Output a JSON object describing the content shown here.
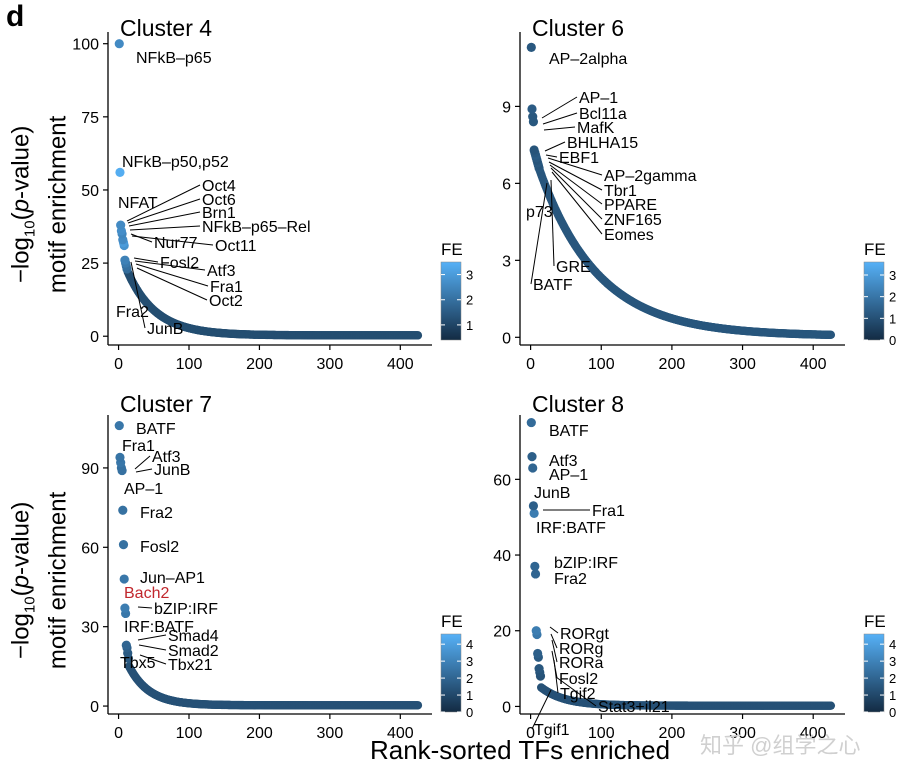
{
  "figure": {
    "panel_letter": "d",
    "ylabel_line1_pre": "−log",
    "ylabel_sub": "10",
    "ylabel_line1_mid": "(",
    "ylabel_line1_ital": "p",
    "ylabel_line1_post": "-value)",
    "ylabel_line2": "motif enrichment",
    "xlabel": "Rank-sorted TFs enriched",
    "watermark": "知乎 @组学之心"
  },
  "colors": {
    "dark": "#132b43",
    "light": "#56b1f7",
    "label_default": "#000000",
    "label_highlight": "#c1272d"
  },
  "chart_data": [
    {
      "type": "scatter",
      "title": "Cluster 4",
      "xticks": [
        0,
        100,
        200,
        300,
        400
      ],
      "yticks": [
        0,
        25,
        50,
        75,
        100
      ],
      "ylim": [
        -3,
        104
      ],
      "xlim": [
        -15,
        445
      ],
      "points": [
        {
          "x": 1,
          "y": 100,
          "fe": 2.6
        },
        {
          "x": 2,
          "y": 56,
          "fe": 3.4
        },
        {
          "x": 3,
          "y": 38,
          "fe": 2.6
        },
        {
          "x": 4,
          "y": 36,
          "fe": 2.7
        },
        {
          "x": 5,
          "y": 35,
          "fe": 2.5
        },
        {
          "x": 6,
          "y": 33,
          "fe": 2.6
        },
        {
          "x": 7,
          "y": 32,
          "fe": 3.0
        },
        {
          "x": 8,
          "y": 31,
          "fe": 2.8
        },
        {
          "x": 9,
          "y": 26,
          "fe": 2.4
        },
        {
          "x": 10,
          "y": 25,
          "fe": 2.2
        },
        {
          "x": 11,
          "y": 24,
          "fe": 2.0
        },
        {
          "x": 12,
          "y": 23,
          "fe": 1.9
        }
      ],
      "tail": {
        "x_start": 13,
        "x_end": 425,
        "y_start": 22,
        "y_end": 0.3,
        "decay": 0.025,
        "fe": 1.2
      },
      "fe_legend": {
        "title": "FE",
        "ticks": [
          1,
          2,
          3
        ],
        "min": 0.4,
        "max": 3.5
      },
      "annotations": [
        {
          "text": "NFkB–p65",
          "x": 1,
          "y": 100
        },
        {
          "text": "NFkB–p50,p52",
          "x": 2,
          "y": 56
        },
        {
          "text": "NFAT",
          "x": 3,
          "y": 38
        },
        {
          "text": "Oct4",
          "x": 4,
          "y": 36
        },
        {
          "text": "Oct6",
          "x": 5,
          "y": 35
        },
        {
          "text": "Brn1",
          "x": 6,
          "y": 33
        },
        {
          "text": "NFkB–p65–Rel",
          "x": 6,
          "y": 33
        },
        {
          "text": "Nur77",
          "x": 7,
          "y": 32
        },
        {
          "text": "Oct11",
          "x": 8,
          "y": 31
        },
        {
          "text": "Fosl2",
          "x": 9,
          "y": 26
        },
        {
          "text": "Atf3",
          "x": 10,
          "y": 25
        },
        {
          "text": "Fra1",
          "x": 10,
          "y": 24
        },
        {
          "text": "Oct2",
          "x": 11,
          "y": 23
        },
        {
          "text": "Fra2",
          "x": 11,
          "y": 23
        },
        {
          "text": "JunB",
          "x": 12,
          "y": 23
        }
      ]
    },
    {
      "type": "scatter",
      "title": "Cluster 6",
      "xticks": [
        0,
        100,
        200,
        300,
        400
      ],
      "yticks": [
        0,
        3,
        6,
        9
      ],
      "ylim": [
        -0.3,
        11.9
      ],
      "xlim": [
        -15,
        445
      ],
      "points": [
        {
          "x": 1,
          "y": 11.3,
          "fe": 1.2
        },
        {
          "x": 2,
          "y": 8.9,
          "fe": 1.3
        },
        {
          "x": 3,
          "y": 8.6,
          "fe": 1.2
        },
        {
          "x": 4,
          "y": 8.4,
          "fe": 1.2
        },
        {
          "x": 5,
          "y": 7.3,
          "fe": 1.1
        },
        {
          "x": 6,
          "y": 7.2,
          "fe": 1.2
        },
        {
          "x": 7,
          "y": 7.1,
          "fe": 1.3
        },
        {
          "x": 8,
          "y": 7.0,
          "fe": 1.2
        },
        {
          "x": 9,
          "y": 6.9,
          "fe": 1.1
        },
        {
          "x": 10,
          "y": 6.8,
          "fe": 1.2
        },
        {
          "x": 11,
          "y": 6.7,
          "fe": 1.1
        },
        {
          "x": 12,
          "y": 6.6,
          "fe": 1.2
        }
      ],
      "tail": {
        "x_start": 13,
        "x_end": 425,
        "y_start": 6.5,
        "y_end": 0.05,
        "decay": 0.012,
        "fe": 1.15
      },
      "fe_legend": {
        "title": "FE",
        "ticks": [
          0,
          1,
          2,
          3
        ],
        "min": 0,
        "max": 3.6
      },
      "annotations": [
        {
          "text": "AP–2alpha",
          "x": 1,
          "y": 11.3
        },
        {
          "text": "AP–1",
          "x": 2,
          "y": 8.9
        },
        {
          "text": "Bcl11a",
          "x": 3,
          "y": 8.6
        },
        {
          "text": "MafK",
          "x": 4,
          "y": 8.4
        },
        {
          "text": "BHLHA15",
          "x": 5,
          "y": 7.3
        },
        {
          "text": "EBF1",
          "x": 6,
          "y": 7.2
        },
        {
          "text": "AP–2gamma",
          "x": 7,
          "y": 7.1
        },
        {
          "text": "Tbr1",
          "x": 8,
          "y": 7.0
        },
        {
          "text": "PPARE",
          "x": 9,
          "y": 6.9
        },
        {
          "text": "p73",
          "x": 10,
          "y": 6.8
        },
        {
          "text": "ZNF165",
          "x": 10,
          "y": 6.8
        },
        {
          "text": "Eomes",
          "x": 11,
          "y": 6.7
        },
        {
          "text": "GRE",
          "x": 11,
          "y": 6.7
        },
        {
          "text": "BATF",
          "x": 12,
          "y": 6.6
        }
      ]
    },
    {
      "type": "scatter",
      "title": "Cluster 7",
      "xticks": [
        0,
        100,
        200,
        300,
        400
      ],
      "yticks": [
        0,
        30,
        60,
        90
      ],
      "ylim": [
        -3,
        110
      ],
      "xlim": [
        -15,
        445
      ],
      "points": [
        {
          "x": 1,
          "y": 106,
          "fe": 2.6
        },
        {
          "x": 2,
          "y": 94,
          "fe": 2.5
        },
        {
          "x": 3,
          "y": 92,
          "fe": 2.6
        },
        {
          "x": 4,
          "y": 90,
          "fe": 2.4
        },
        {
          "x": 5,
          "y": 89,
          "fe": 2.4
        },
        {
          "x": 6,
          "y": 74,
          "fe": 2.4
        },
        {
          "x": 7,
          "y": 61,
          "fe": 2.4
        },
        {
          "x": 8,
          "y": 48,
          "fe": 2.6
        },
        {
          "x": 9,
          "y": 37,
          "fe": 2.8
        },
        {
          "x": 10,
          "y": 35,
          "fe": 2.6
        },
        {
          "x": 11,
          "y": 23,
          "fe": 2.0
        },
        {
          "x": 12,
          "y": 22,
          "fe": 1.8
        },
        {
          "x": 13,
          "y": 20,
          "fe": 1.6
        },
        {
          "x": 14,
          "y": 18,
          "fe": 1.6
        }
      ],
      "tail": {
        "x_start": 15,
        "x_end": 425,
        "y_start": 15,
        "y_end": 0.3,
        "decay": 0.035,
        "fe": 1.3
      },
      "fe_legend": {
        "title": "FE",
        "ticks": [
          0,
          1,
          2,
          3,
          4
        ],
        "min": 0,
        "max": 4.6
      },
      "annotations": [
        {
          "text": "BATF",
          "x": 1,
          "y": 106
        },
        {
          "text": "Fra1",
          "x": 2,
          "y": 94
        },
        {
          "text": "Atf3",
          "x": 3,
          "y": 92
        },
        {
          "text": "JunB",
          "x": 4,
          "y": 90
        },
        {
          "text": "AP–1",
          "x": 5,
          "y": 89
        },
        {
          "text": "Fra2",
          "x": 6,
          "y": 74
        },
        {
          "text": "Fosl2",
          "x": 7,
          "y": 61
        },
        {
          "text": "Jun–AP1",
          "x": 8,
          "y": 48
        },
        {
          "text": "Bach2",
          "x": 9,
          "y": 37,
          "highlight": true
        },
        {
          "text": "bZIP:IRF",
          "x": 10,
          "y": 35
        },
        {
          "text": "IRF:BATF",
          "x": 10,
          "y": 35
        },
        {
          "text": "Smad4",
          "x": 11,
          "y": 23
        },
        {
          "text": "Smad2",
          "x": 12,
          "y": 22
        },
        {
          "text": "Tbx5",
          "x": 13,
          "y": 20
        },
        {
          "text": "Tbx21",
          "x": 14,
          "y": 18
        }
      ]
    },
    {
      "type": "scatter",
      "title": "Cluster 8",
      "xticks": [
        0,
        100,
        200,
        300,
        400
      ],
      "yticks": [
        0,
        20,
        40,
        60
      ],
      "ylim": [
        -2,
        77
      ],
      "xlim": [
        -15,
        445
      ],
      "points": [
        {
          "x": 1,
          "y": 75,
          "fe": 2.2
        },
        {
          "x": 2,
          "y": 66,
          "fe": 1.8
        },
        {
          "x": 3,
          "y": 63,
          "fe": 2.0
        },
        {
          "x": 4,
          "y": 53,
          "fe": 1.8
        },
        {
          "x": 5,
          "y": 51,
          "fe": 2.8
        },
        {
          "x": 6,
          "y": 37,
          "fe": 2.0
        },
        {
          "x": 7,
          "y": 35,
          "fe": 2.0
        },
        {
          "x": 8,
          "y": 20,
          "fe": 2.8
        },
        {
          "x": 9,
          "y": 19,
          "fe": 2.6
        },
        {
          "x": 10,
          "y": 14,
          "fe": 1.8
        },
        {
          "x": 11,
          "y": 13,
          "fe": 1.6
        },
        {
          "x": 12,
          "y": 10,
          "fe": 1.5
        },
        {
          "x": 13,
          "y": 9,
          "fe": 1.4
        },
        {
          "x": 14,
          "y": 8,
          "fe": 1.3
        }
      ],
      "tail": {
        "x_start": 15,
        "x_end": 425,
        "y_start": 5,
        "y_end": 0.2,
        "decay": 0.03,
        "fe": 1.3
      },
      "fe_legend": {
        "title": "FE",
        "ticks": [
          0,
          1,
          2,
          3,
          4
        ],
        "min": 0,
        "max": 4.6
      },
      "annotations": [
        {
          "text": "BATF",
          "x": 1,
          "y": 75
        },
        {
          "text": "Atf3",
          "x": 2,
          "y": 66
        },
        {
          "text": "AP–1",
          "x": 3,
          "y": 63
        },
        {
          "text": "JunB",
          "x": 4,
          "y": 53
        },
        {
          "text": "Fra1",
          "x": 4,
          "y": 53
        },
        {
          "text": "IRF:BATF",
          "x": 5,
          "y": 51
        },
        {
          "text": "bZIP:IRF",
          "x": 6,
          "y": 37
        },
        {
          "text": "Fra2",
          "x": 7,
          "y": 35
        },
        {
          "text": "RORgt",
          "x": 8,
          "y": 20
        },
        {
          "text": "RORg",
          "x": 9,
          "y": 19
        },
        {
          "text": "RORa",
          "x": 9,
          "y": 19
        },
        {
          "text": "Fosl2",
          "x": 10,
          "y": 14
        },
        {
          "text": "Tgif2",
          "x": 11,
          "y": 13
        },
        {
          "text": "Stat3+il21",
          "x": 12,
          "y": 10
        },
        {
          "text": "Tgif1",
          "x": 13,
          "y": 9
        }
      ]
    }
  ]
}
